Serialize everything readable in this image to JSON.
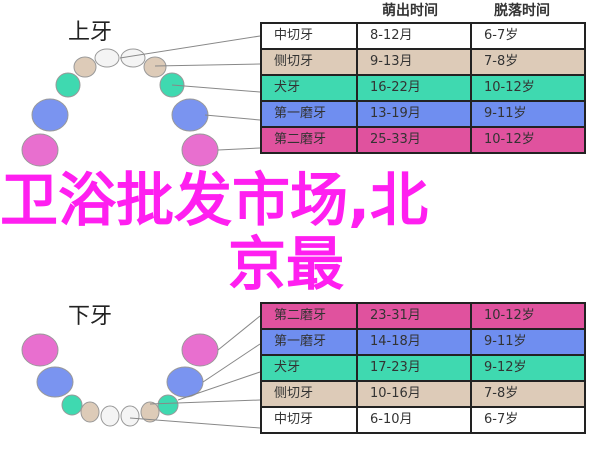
{
  "labels": {
    "upper": "上牙",
    "lower": "下牙"
  },
  "headers": {
    "eruption": "萌出时间",
    "shedding": "脱落时间"
  },
  "upper_rows": [
    {
      "tooth": "中切牙",
      "eruption": "8-12月",
      "shedding": "6-7岁",
      "color": "#ffffff"
    },
    {
      "tooth": "侧切牙",
      "eruption": "9-13月",
      "shedding": "7-8岁",
      "color": "#ddcbb8"
    },
    {
      "tooth": "犬牙",
      "eruption": "16-22月",
      "shedding": "10-12岁",
      "color": "#3fd9b0"
    },
    {
      "tooth": "第一磨牙",
      "eruption": "13-19月",
      "shedding": "9-11岁",
      "color": "#6f8ef0"
    },
    {
      "tooth": "第二磨牙",
      "eruption": "25-33月",
      "shedding": "10-12岁",
      "color": "#e0529e"
    }
  ],
  "lower_rows": [
    {
      "tooth": "第二磨牙",
      "eruption": "23-31月",
      "shedding": "10-12岁",
      "color": "#e0529e"
    },
    {
      "tooth": "第一磨牙",
      "eruption": "14-18月",
      "shedding": "9-11岁",
      "color": "#6f8ef0"
    },
    {
      "tooth": "犬牙",
      "eruption": "17-23月",
      "shedding": "9-12岁",
      "color": "#3fd9b0"
    },
    {
      "tooth": "侧切牙",
      "eruption": "10-16月",
      "shedding": "7-8岁",
      "color": "#ddcbb8"
    },
    {
      "tooth": "中切牙",
      "eruption": "6-10月",
      "shedding": "6-7岁",
      "color": "#ffffff"
    }
  ],
  "overlay": {
    "line1": "卫浴批发市场,北",
    "line2": "京最"
  }
}
